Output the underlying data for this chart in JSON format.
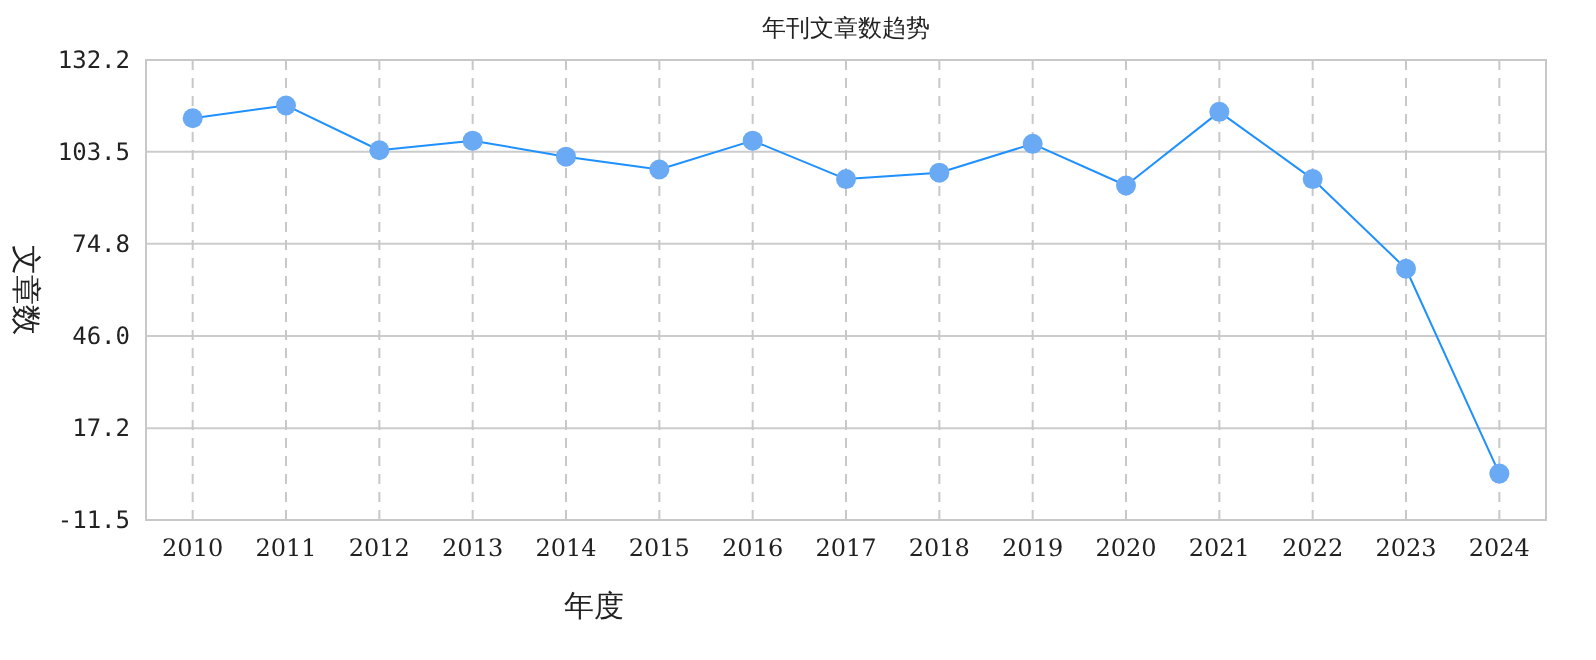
{
  "chart_data": {
    "type": "line",
    "title": "年刊文章数趋势",
    "xlabel": "年度",
    "ylabel": "文章数",
    "categories": [
      "2010",
      "2011",
      "2012",
      "2013",
      "2014",
      "2015",
      "2016",
      "2017",
      "2018",
      "2019",
      "2020",
      "2021",
      "2022",
      "2023",
      "2024"
    ],
    "series": [
      {
        "color": "#1e90ff",
        "values": [
          114,
          118,
          104,
          107,
          102,
          98,
          107,
          95,
          97,
          106,
          93,
          116,
          95,
          67,
          3
        ]
      }
    ],
    "ylim": [
      -11.5,
      132.2
    ],
    "yticks": [
      {
        "value": -11.5,
        "label": "-11.5"
      },
      {
        "value": 17.2,
        "label": "17.2"
      },
      {
        "value": 46.0,
        "label": "46.0"
      },
      {
        "value": 74.8,
        "label": "74.8"
      },
      {
        "value": 103.5,
        "label": "103.5"
      },
      {
        "value": 132.2,
        "label": "132.2"
      }
    ],
    "grid": true,
    "marker": "circle",
    "line_style": "solid"
  }
}
